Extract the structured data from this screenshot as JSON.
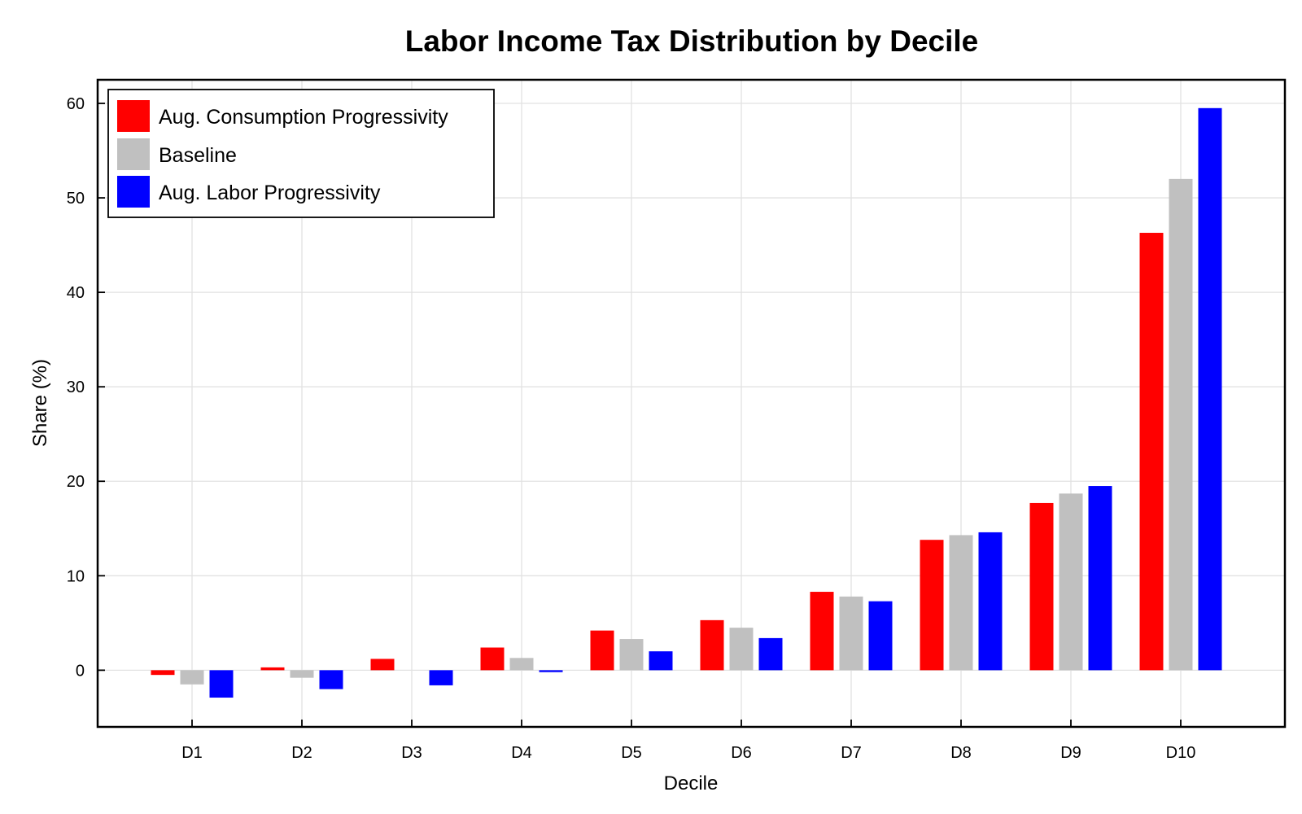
{
  "chart_data": {
    "type": "bar",
    "title": "Labor Income Tax Distribution by Decile",
    "xlabel": "Decile",
    "ylabel": "Share (%)",
    "categories": [
      "D1",
      "D2",
      "D3",
      "D4",
      "D5",
      "D6",
      "D7",
      "D8",
      "D9",
      "D10"
    ],
    "ylim": [
      -6,
      62.5
    ],
    "yticks": [
      0,
      10,
      20,
      30,
      40,
      50,
      60
    ],
    "grid": true,
    "legend_position": "top-left",
    "series": [
      {
        "name": "Aug. Consumption Progressivity",
        "color": "#ff0000",
        "values": [
          -0.5,
          0.3,
          1.2,
          2.4,
          4.2,
          5.3,
          8.3,
          13.8,
          17.7,
          46.3
        ]
      },
      {
        "name": "Baseline",
        "color": "#c0c0c0",
        "values": [
          -1.5,
          -0.8,
          0.0,
          1.3,
          3.3,
          4.5,
          7.8,
          14.3,
          18.7,
          52.0
        ]
      },
      {
        "name": "Aug. Labor Progressivity",
        "color": "#0000ff",
        "values": [
          -2.9,
          -2.0,
          -1.6,
          -0.2,
          2.0,
          3.4,
          7.3,
          14.6,
          19.5,
          59.5
        ]
      }
    ]
  }
}
